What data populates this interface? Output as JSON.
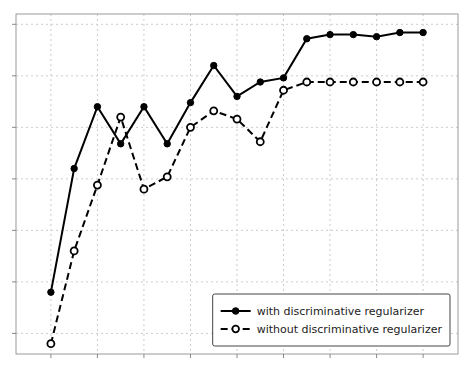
{
  "chart_data": {
    "type": "line",
    "x": [
      0,
      1,
      2,
      3,
      4,
      5,
      6,
      7,
      8,
      9,
      10,
      11,
      12,
      13,
      14,
      15,
      16
    ],
    "series": [
      {
        "name": "with discriminative regularizer",
        "color": "#000000",
        "line_style": "solid",
        "marker": "circle",
        "values": [
          -0.3,
          0.3,
          0.6,
          0.42,
          0.6,
          0.42,
          0.62,
          0.8,
          0.65,
          0.72,
          0.74,
          0.93,
          0.95,
          0.95,
          0.94,
          0.96,
          0.96
        ]
      },
      {
        "name": "without discriminative regularizer",
        "color": "#000000",
        "line_style": "dashed",
        "marker": "open-circle",
        "values": [
          -0.55,
          -0.1,
          0.22,
          0.55,
          0.2,
          0.26,
          0.5,
          0.58,
          0.54,
          0.43,
          0.68,
          0.72,
          0.72,
          0.72,
          0.72,
          0.72,
          0.72
        ]
      }
    ],
    "xlim": [
      -1.5,
      17.5
    ],
    "xticks": [
      0,
      2,
      4,
      6,
      8,
      10,
      12,
      14,
      16
    ],
    "ylim": [
      -0.6,
      1.05
    ],
    "yticks": [
      -0.5,
      -0.25,
      0.0,
      0.25,
      0.5,
      0.75,
      1.0
    ],
    "grid": true,
    "legend": "lower right",
    "tick_labels": false
  }
}
